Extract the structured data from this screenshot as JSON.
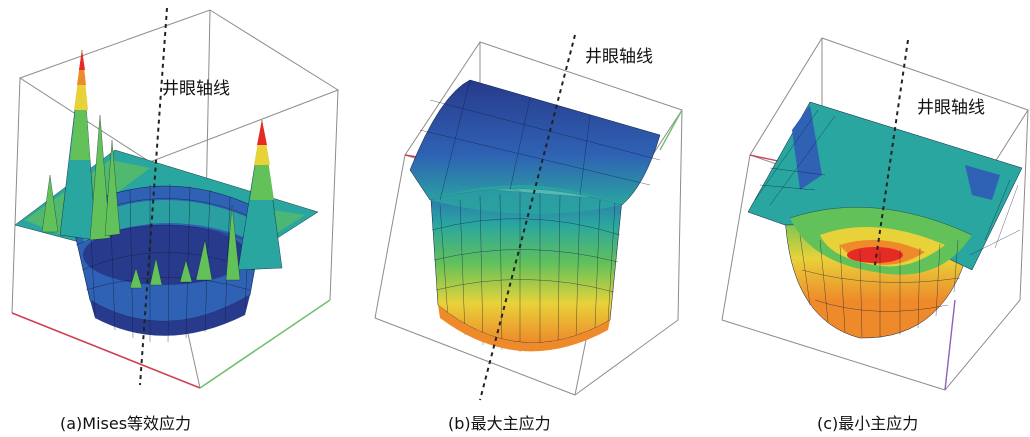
{
  "panels": [
    {
      "axis_label": "井眼轴线",
      "caption": "(a)Mises等效应力"
    },
    {
      "axis_label": "井眼轴线",
      "caption": "(b)最大主应力"
    },
    {
      "axis_label": "井眼轴线",
      "caption": "(c)最小主应力"
    }
  ],
  "colors": {
    "box_edge": "#8c8c8c",
    "axis_red": "#d04050",
    "axis_green": "#70c070",
    "axis_violet": "#9060c0",
    "navy": "#283a8c",
    "blue": "#2f62b4",
    "teal": "#2aa6a0",
    "green": "#63c15a",
    "yellow": "#e8d23a",
    "orange": "#ee8a2a",
    "red": "#e62a24"
  }
}
